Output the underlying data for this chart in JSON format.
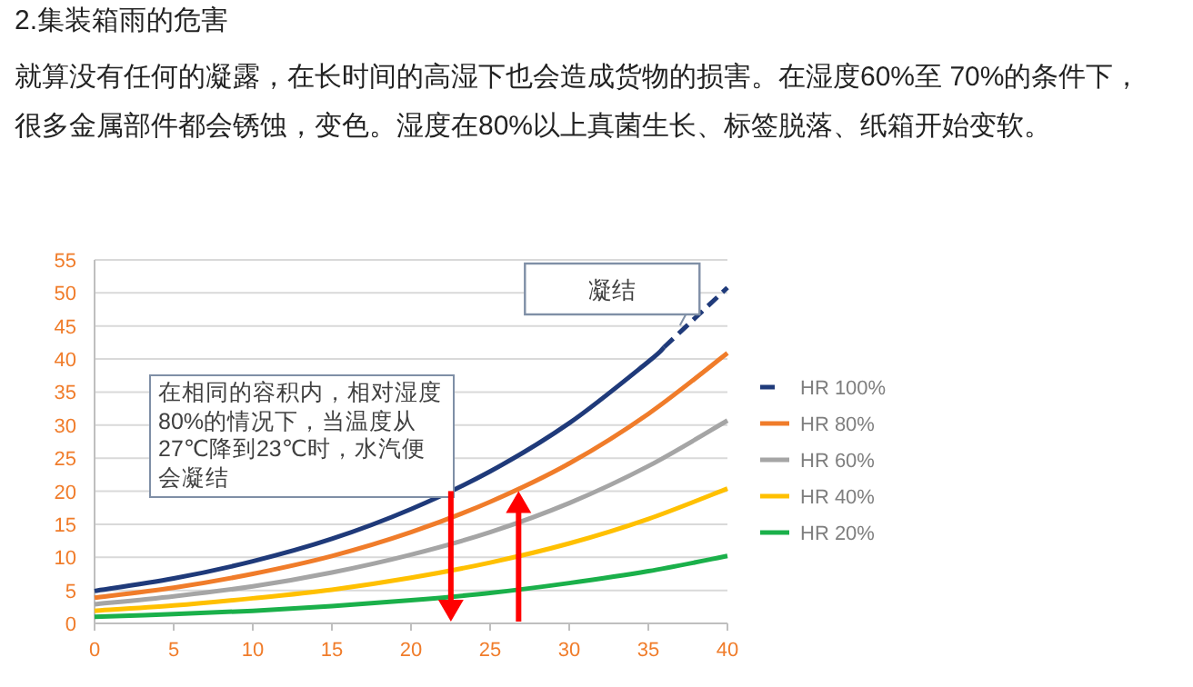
{
  "chart_data": {
    "type": "line",
    "title": "2.集装箱雨的危害",
    "subtitle": "就算没有任何的凝露，在长时间的高湿下也会造成货物的损害。在湿度60%至 70%的条件下，很多金属部件都会锈蚀，变色。湿度在80%以上真菌生长、标签脱落、纸箱开始变软。",
    "x": [
      0,
      5,
      10,
      15,
      20,
      25,
      30,
      35,
      40
    ],
    "series": [
      {
        "color": "#1f3a7a",
        "line_style": "solid",
        "x": [
          0,
          5,
          10,
          15,
          20,
          25,
          30,
          35,
          36
        ],
        "values": [
          4.9,
          6.8,
          9.4,
          12.8,
          17.3,
          23.0,
          30.3,
          39.6,
          41.8
        ]
      },
      {
        "name": "HR 100%",
        "color": "#1f3a7a",
        "line_style": "dashed",
        "x": [
          36,
          40
        ],
        "values": [
          41.8,
          50.8
        ]
      },
      {
        "name": "HR 80%",
        "color": "#f07c2a",
        "line_style": "solid",
        "values": [
          3.9,
          5.4,
          7.5,
          10.2,
          13.8,
          18.4,
          24.2,
          31.7,
          40.9
        ]
      },
      {
        "name": "HR 60%",
        "color": "#a5a5a5",
        "line_style": "solid",
        "values": [
          2.9,
          4.1,
          5.6,
          7.7,
          10.4,
          13.8,
          18.2,
          23.8,
          30.7
        ]
      },
      {
        "name": "HR 40%",
        "color": "#ffc000",
        "line_style": "solid",
        "values": [
          1.9,
          2.7,
          3.8,
          5.1,
          6.9,
          9.2,
          12.1,
          15.8,
          20.4
        ]
      },
      {
        "name": "HR 20%",
        "color": "#1ab04a",
        "line_style": "solid",
        "values": [
          1.0,
          1.4,
          1.9,
          2.6,
          3.5,
          4.6,
          6.1,
          7.9,
          10.2
        ]
      }
    ],
    "xlim": [
      0,
      40
    ],
    "xticks": [
      0,
      5,
      10,
      15,
      20,
      25,
      30,
      35,
      40
    ],
    "ylim": [
      0,
      55
    ],
    "yticks": [
      0,
      5,
      10,
      15,
      20,
      25,
      30,
      35,
      40,
      45,
      50,
      55
    ],
    "grid": "y",
    "legend": "right",
    "marker": "none",
    "annotations": [
      "凝结",
      "在相同的容积内，相对湿度80%的情况下，当温度从27℃降到23℃时，水汽便会凝结"
    ]
  }
}
